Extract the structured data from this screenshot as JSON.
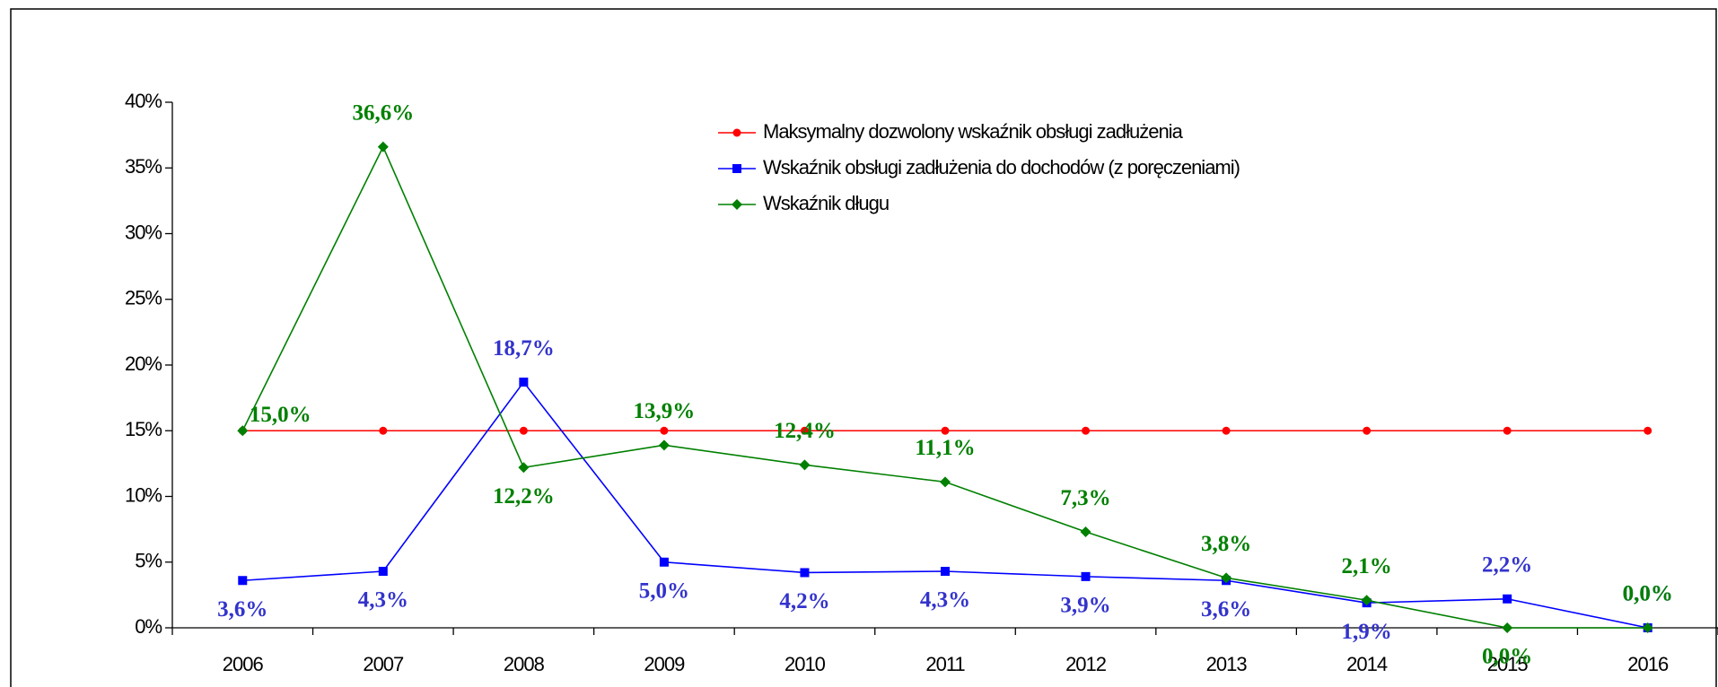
{
  "chart_data": {
    "type": "line",
    "categories": [
      "2006",
      "2007",
      "2008",
      "2009",
      "2010",
      "2011",
      "2012",
      "2013",
      "2014",
      "2015",
      "2016"
    ],
    "series": [
      {
        "name": "Maksymalny dozwolony wskaźnik obsługi zadłużenia",
        "color": "#ff0000",
        "marker": "circle",
        "values": [
          15,
          15,
          15,
          15,
          15,
          15,
          15,
          15,
          15,
          15,
          15
        ]
      },
      {
        "name": "Wskaźnik obsługi zadłużenia do dochodów (z poręczeniami)",
        "color": "#0000ff",
        "marker": "square",
        "label_color": "#3333cc",
        "values": [
          3.6,
          4.3,
          18.7,
          5.0,
          4.2,
          4.3,
          3.9,
          3.6,
          1.9,
          2.2,
          0.0
        ],
        "value_labels": [
          "3,6%",
          "4,3%",
          "18,7%",
          "5,0%",
          "4,2%",
          "4,3%",
          "3,9%",
          "3,6%",
          "1,9%",
          "2,2%",
          "0,0%"
        ]
      },
      {
        "name": "Wskaźnik długu",
        "color": "#008000",
        "marker": "diamond",
        "label_color": "#008000",
        "values": [
          15.0,
          36.6,
          12.2,
          13.9,
          12.4,
          11.1,
          7.3,
          3.8,
          2.1,
          0.0,
          0.0
        ],
        "value_labels": [
          "15,0%",
          "36,6%",
          "12,2%",
          "13,9%",
          "12,4%",
          "11,1%",
          "7,3%",
          "3,8%",
          "2,1%",
          "0,0%",
          "0,0%"
        ]
      }
    ],
    "ylim": [
      0,
      40
    ],
    "yticks": [
      {
        "value": 0,
        "label": "0%"
      },
      {
        "value": 5,
        "label": "5%"
      },
      {
        "value": 10,
        "label": "10%"
      },
      {
        "value": 15,
        "label": "15%"
      },
      {
        "value": 20,
        "label": "20%"
      },
      {
        "value": 25,
        "label": "25%"
      },
      {
        "value": 30,
        "label": "30%"
      },
      {
        "value": 35,
        "label": "35%"
      },
      {
        "value": 40,
        "label": "40%"
      }
    ],
    "legend": "top"
  }
}
